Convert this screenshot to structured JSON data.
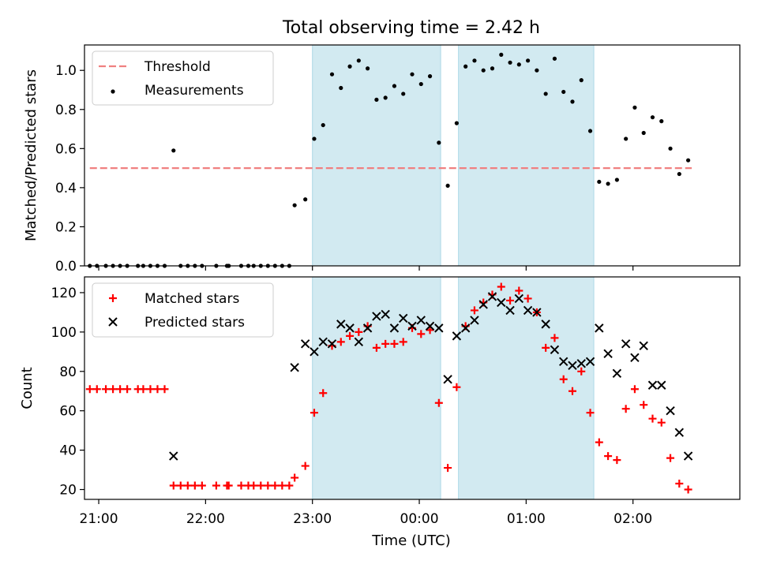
{
  "chart_data": {
    "title": "Total observing time = 2.42 h",
    "xlabel": "Time (UTC)",
    "x_ticks": [
      "21:00",
      "22:00",
      "23:00",
      "00:00",
      "01:00",
      "02:00"
    ],
    "x_range": [
      "20:52",
      "03:00"
    ],
    "shaded_intervals": [
      [
        "23:00",
        "00:12"
      ],
      [
        "00:22",
        "01:38"
      ]
    ],
    "shade_color": "#add8e6",
    "panels": [
      {
        "type": "scatter",
        "ylabel": "Matched/Predicted stars",
        "ylim": [
          0,
          1.13
        ],
        "y_ticks": [
          "0.0",
          "0.2",
          "0.4",
          "0.6",
          "0.8",
          "1.0"
        ],
        "legend_position": "upper left",
        "threshold": {
          "name": "Threshold",
          "value": 0.5,
          "x_start": "20:55",
          "x_end": "02:33",
          "color": "#f08080"
        },
        "series": [
          {
            "name": "Measurements",
            "color": "#000000",
            "marker": "dot",
            "points": [
              [
                "20:55",
                0.0
              ],
              [
                "20:59",
                0.0
              ],
              [
                "21:04",
                0.0
              ],
              [
                "21:08",
                0.0
              ],
              [
                "21:12",
                0.0
              ],
              [
                "21:16",
                0.0
              ],
              [
                "21:22",
                0.0
              ],
              [
                "21:25",
                0.0
              ],
              [
                "21:29",
                0.0
              ],
              [
                "21:33",
                0.0
              ],
              [
                "21:37",
                0.0
              ],
              [
                "21:42",
                0.59
              ],
              [
                "21:46",
                0.0
              ],
              [
                "21:50",
                0.0
              ],
              [
                "21:54",
                0.0
              ],
              [
                "21:58",
                0.0
              ],
              [
                "22:06",
                0.0
              ],
              [
                "22:12",
                0.0
              ],
              [
                "22:13",
                0.0
              ],
              [
                "22:20",
                0.0
              ],
              [
                "22:24",
                0.0
              ],
              [
                "22:27",
                0.0
              ],
              [
                "22:31",
                0.0
              ],
              [
                "22:35",
                0.0
              ],
              [
                "22:39",
                0.0
              ],
              [
                "22:43",
                0.0
              ],
              [
                "22:47",
                0.0
              ],
              [
                "22:50",
                0.31
              ],
              [
                "22:56",
                0.34
              ],
              [
                "23:01",
                0.65
              ],
              [
                "23:06",
                0.72
              ],
              [
                "23:11",
                0.98
              ],
              [
                "23:16",
                0.91
              ],
              [
                "23:21",
                1.02
              ],
              [
                "23:26",
                1.05
              ],
              [
                "23:31",
                1.01
              ],
              [
                "23:36",
                0.85
              ],
              [
                "23:41",
                0.86
              ],
              [
                "23:46",
                0.92
              ],
              [
                "23:51",
                0.88
              ],
              [
                "23:56",
                0.98
              ],
              [
                "00:01",
                0.93
              ],
              [
                "00:06",
                0.97
              ],
              [
                "00:11",
                0.63
              ],
              [
                "00:16",
                0.41
              ],
              [
                "00:21",
                0.73
              ],
              [
                "00:26",
                1.02
              ],
              [
                "00:31",
                1.05
              ],
              [
                "00:36",
                1.0
              ],
              [
                "00:41",
                1.01
              ],
              [
                "00:46",
                1.08
              ],
              [
                "00:51",
                1.04
              ],
              [
                "00:56",
                1.03
              ],
              [
                "01:01",
                1.05
              ],
              [
                "01:06",
                1.0
              ],
              [
                "01:11",
                0.88
              ],
              [
                "01:16",
                1.06
              ],
              [
                "01:21",
                0.89
              ],
              [
                "01:26",
                0.84
              ],
              [
                "01:31",
                0.95
              ],
              [
                "01:36",
                0.69
              ],
              [
                "01:41",
                0.43
              ],
              [
                "01:46",
                0.42
              ],
              [
                "01:51",
                0.44
              ],
              [
                "01:56",
                0.65
              ],
              [
                "02:01",
                0.81
              ],
              [
                "02:06",
                0.68
              ],
              [
                "02:11",
                0.76
              ],
              [
                "02:16",
                0.74
              ],
              [
                "02:21",
                0.6
              ],
              [
                "02:26",
                0.47
              ],
              [
                "02:31",
                0.54
              ]
            ]
          }
        ]
      },
      {
        "type": "scatter",
        "ylabel": "Count",
        "ylim": [
          15,
          128
        ],
        "y_ticks": [
          "20",
          "40",
          "60",
          "80",
          "100",
          "120"
        ],
        "legend_position": "upper left",
        "series": [
          {
            "name": "Matched stars",
            "color": "#ff0000",
            "marker": "plus",
            "points": [
              [
                "20:55",
                71
              ],
              [
                "20:59",
                71
              ],
              [
                "21:04",
                71
              ],
              [
                "21:08",
                71
              ],
              [
                "21:12",
                71
              ],
              [
                "21:16",
                71
              ],
              [
                "21:22",
                71
              ],
              [
                "21:25",
                71
              ],
              [
                "21:29",
                71
              ],
              [
                "21:33",
                71
              ],
              [
                "21:37",
                71
              ],
              [
                "21:42",
                22
              ],
              [
                "21:46",
                22
              ],
              [
                "21:50",
                22
              ],
              [
                "21:54",
                22
              ],
              [
                "21:58",
                22
              ],
              [
                "22:06",
                22
              ],
              [
                "22:12",
                22
              ],
              [
                "22:13",
                22
              ],
              [
                "22:20",
                22
              ],
              [
                "22:24",
                22
              ],
              [
                "22:27",
                22
              ],
              [
                "22:31",
                22
              ],
              [
                "22:35",
                22
              ],
              [
                "22:39",
                22
              ],
              [
                "22:43",
                22
              ],
              [
                "22:47",
                22
              ],
              [
                "22:50",
                26
              ],
              [
                "22:56",
                32
              ],
              [
                "23:01",
                59
              ],
              [
                "23:06",
                69
              ],
              [
                "23:11",
                93
              ],
              [
                "23:16",
                95
              ],
              [
                "23:21",
                98
              ],
              [
                "23:26",
                100
              ],
              [
                "23:31",
                103
              ],
              [
                "23:36",
                92
              ],
              [
                "23:41",
                94
              ],
              [
                "23:46",
                94
              ],
              [
                "23:51",
                95
              ],
              [
                "23:56",
                102
              ],
              [
                "00:01",
                99
              ],
              [
                "00:06",
                101
              ],
              [
                "00:11",
                64
              ],
              [
                "00:16",
                31
              ],
              [
                "00:21",
                72
              ],
              [
                "00:26",
                103
              ],
              [
                "00:31",
                111
              ],
              [
                "00:36",
                115
              ],
              [
                "00:41",
                119
              ],
              [
                "00:46",
                123
              ],
              [
                "00:51",
                116
              ],
              [
                "00:56",
                121
              ],
              [
                "01:01",
                117
              ],
              [
                "01:06",
                110
              ],
              [
                "01:11",
                92
              ],
              [
                "01:16",
                97
              ],
              [
                "01:21",
                76
              ],
              [
                "01:26",
                70
              ],
              [
                "01:31",
                80
              ],
              [
                "01:36",
                59
              ],
              [
                "01:41",
                44
              ],
              [
                "01:46",
                37
              ],
              [
                "01:51",
                35
              ],
              [
                "01:56",
                61
              ],
              [
                "02:01",
                71
              ],
              [
                "02:06",
                63
              ],
              [
                "02:11",
                56
              ],
              [
                "02:16",
                54
              ],
              [
                "02:21",
                36
              ],
              [
                "02:26",
                23
              ],
              [
                "02:31",
                20
              ]
            ]
          },
          {
            "name": "Predicted stars",
            "color": "#000000",
            "marker": "x",
            "points": [
              [
                "21:42",
                37
              ],
              [
                "22:50",
                82
              ],
              [
                "22:56",
                94
              ],
              [
                "23:01",
                90
              ],
              [
                "23:06",
                95
              ],
              [
                "23:11",
                94
              ],
              [
                "23:16",
                104
              ],
              [
                "23:21",
                102
              ],
              [
                "23:26",
                95
              ],
              [
                "23:31",
                102
              ],
              [
                "23:36",
                108
              ],
              [
                "23:41",
                109
              ],
              [
                "23:46",
                102
              ],
              [
                "23:51",
                107
              ],
              [
                "23:56",
                103
              ],
              [
                "00:01",
                106
              ],
              [
                "00:06",
                103
              ],
              [
                "00:11",
                102
              ],
              [
                "00:16",
                76
              ],
              [
                "00:21",
                98
              ],
              [
                "00:26",
                102
              ],
              [
                "00:31",
                106
              ],
              [
                "00:36",
                114
              ],
              [
                "00:41",
                118
              ],
              [
                "00:46",
                115
              ],
              [
                "00:51",
                111
              ],
              [
                "00:56",
                117
              ],
              [
                "01:01",
                111
              ],
              [
                "01:06",
                110
              ],
              [
                "01:11",
                104
              ],
              [
                "01:16",
                91
              ],
              [
                "01:21",
                85
              ],
              [
                "01:26",
                83
              ],
              [
                "01:31",
                84
              ],
              [
                "01:36",
                85
              ],
              [
                "01:41",
                102
              ],
              [
                "01:46",
                89
              ],
              [
                "01:51",
                79
              ],
              [
                "01:56",
                94
              ],
              [
                "02:01",
                87
              ],
              [
                "02:06",
                93
              ],
              [
                "02:11",
                73
              ],
              [
                "02:16",
                73
              ],
              [
                "02:21",
                60
              ],
              [
                "02:26",
                49
              ],
              [
                "02:31",
                37
              ]
            ]
          }
        ]
      }
    ]
  }
}
